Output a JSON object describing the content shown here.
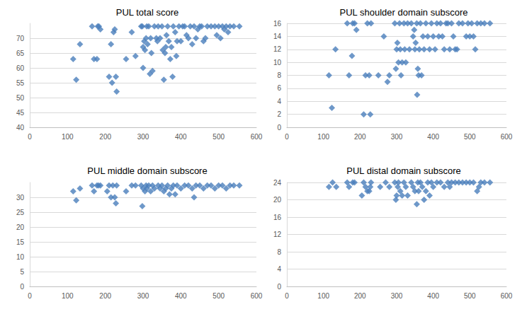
{
  "chart_data": [
    {
      "type": "scatter",
      "title": "PUL total score",
      "color": "#4a7ebb",
      "marker": "diamond",
      "grid": true,
      "xlim": [
        0,
        600
      ],
      "xticks": [
        0,
        100,
        200,
        300,
        400,
        500,
        600
      ],
      "ylim": [
        40,
        75
      ],
      "yticks": [
        40,
        45,
        50,
        55,
        60,
        65,
        70
      ],
      "x": [
        115,
        123,
        133,
        165,
        170,
        178,
        180,
        183,
        187,
        210,
        215,
        218,
        222,
        225,
        228,
        230,
        255,
        270,
        280,
        295,
        298,
        300,
        300,
        303,
        305,
        308,
        310,
        312,
        315,
        318,
        320,
        322,
        325,
        330,
        335,
        338,
        340,
        345,
        350,
        352,
        355,
        358,
        360,
        362,
        365,
        368,
        372,
        375,
        378,
        380,
        385,
        388,
        390,
        395,
        400,
        405,
        410,
        415,
        420,
        425,
        430,
        435,
        440,
        445,
        450,
        455,
        460,
        465,
        470,
        480,
        490,
        495,
        500,
        505,
        510,
        515,
        520,
        525,
        530,
        540,
        555
      ],
      "values": [
        63,
        56,
        68,
        74,
        63,
        63,
        74,
        74,
        73,
        57,
        68,
        55,
        72,
        73,
        57,
        52,
        63,
        72,
        64,
        74,
        74,
        60,
        67,
        69,
        66,
        70,
        74,
        68,
        74,
        58,
        70,
        65,
        59,
        74,
        70,
        69,
        74,
        70,
        74,
        66,
        56,
        65,
        67,
        71,
        74,
        69,
        63,
        67,
        57,
        74,
        72,
        64,
        69,
        74,
        69,
        74,
        74,
        71,
        70,
        74,
        68,
        74,
        70,
        73,
        74,
        74,
        69,
        70,
        74,
        74,
        74,
        71,
        74,
        70,
        74,
        73,
        74,
        72,
        74,
        74,
        74
      ]
    },
    {
      "type": "scatter",
      "title": "PUL shoulder domain subscore",
      "color": "#4a7ebb",
      "marker": "diamond",
      "grid": true,
      "xlim": [
        0,
        600
      ],
      "xticks": [
        0,
        100,
        200,
        300,
        400,
        500,
        600
      ],
      "ylim": [
        0,
        16
      ],
      "yticks": [
        0,
        2,
        4,
        6,
        8,
        10,
        12,
        14,
        16
      ],
      "x": [
        115,
        123,
        133,
        165,
        170,
        178,
        180,
        185,
        190,
        210,
        215,
        220,
        225,
        228,
        230,
        250,
        265,
        275,
        280,
        295,
        298,
        300,
        302,
        305,
        308,
        310,
        312,
        315,
        320,
        322,
        325,
        330,
        335,
        340,
        345,
        348,
        350,
        352,
        355,
        356,
        358,
        360,
        362,
        365,
        368,
        372,
        375,
        380,
        385,
        390,
        395,
        400,
        405,
        410,
        415,
        420,
        425,
        430,
        435,
        440,
        445,
        450,
        455,
        460,
        465,
        470,
        480,
        490,
        495,
        500,
        505,
        510,
        515,
        520,
        530,
        540,
        555
      ],
      "values": [
        8,
        3,
        12,
        16,
        8,
        11,
        16,
        16,
        15,
        2,
        8,
        16,
        8,
        2,
        16,
        8,
        14,
        7,
        8,
        16,
        9,
        12,
        13,
        10,
        16,
        12,
        8,
        10,
        16,
        12,
        10,
        16,
        12,
        16,
        14,
        15,
        12,
        13,
        16,
        5,
        9,
        8,
        12,
        16,
        8,
        14,
        12,
        16,
        14,
        12,
        16,
        14,
        12,
        16,
        14,
        16,
        14,
        12,
        16,
        16,
        12,
        16,
        14,
        12,
        12,
        16,
        16,
        14,
        16,
        14,
        16,
        14,
        12,
        16,
        16,
        16,
        16
      ]
    },
    {
      "type": "scatter",
      "title": "PUL middle domain subscore",
      "color": "#4a7ebb",
      "marker": "diamond",
      "grid": true,
      "xlim": [
        0,
        600
      ],
      "xticks": [
        0,
        100,
        200,
        300,
        400,
        500,
        600
      ],
      "ylim": [
        0,
        35
      ],
      "yticks": [
        0,
        5,
        10,
        15,
        20,
        25,
        30
      ],
      "x": [
        115,
        123,
        133,
        165,
        170,
        178,
        182,
        187,
        205,
        210,
        215,
        220,
        225,
        228,
        230,
        255,
        270,
        280,
        295,
        298,
        300,
        305,
        308,
        310,
        315,
        320,
        325,
        330,
        340,
        345,
        350,
        355,
        360,
        365,
        370,
        375,
        380,
        385,
        390,
        400,
        410,
        420,
        430,
        435,
        440,
        450,
        460,
        470,
        480,
        490,
        500,
        510,
        520,
        530,
        540,
        555
      ],
      "values": [
        32,
        29,
        33,
        34,
        32,
        34,
        34,
        34,
        32,
        34,
        30,
        34,
        30,
        28,
        34,
        32,
        34,
        34,
        34,
        27,
        33,
        32,
        34,
        33,
        34,
        32,
        34,
        33,
        34,
        33,
        34,
        32,
        33,
        34,
        31,
        33,
        34,
        31,
        34,
        33,
        34,
        34,
        33,
        30,
        34,
        34,
        33,
        34,
        34,
        33,
        34,
        34,
        33,
        34,
        34,
        34
      ]
    },
    {
      "type": "scatter",
      "title": "PUL distal domain subscore",
      "color": "#4a7ebb",
      "marker": "diamond",
      "grid": true,
      "xlim": [
        0,
        600
      ],
      "xticks": [
        0,
        100,
        200,
        300,
        400,
        500,
        600
      ],
      "ylim": [
        0,
        24
      ],
      "yticks": [
        0,
        4,
        8,
        12,
        16,
        20,
        24
      ],
      "x": [
        115,
        125,
        135,
        165,
        170,
        180,
        185,
        205,
        210,
        215,
        220,
        225,
        228,
        230,
        255,
        270,
        280,
        295,
        298,
        300,
        303,
        305,
        310,
        315,
        320,
        325,
        330,
        340,
        345,
        350,
        355,
        358,
        360,
        365,
        370,
        375,
        380,
        385,
        390,
        395,
        400,
        410,
        420,
        430,
        440,
        445,
        450,
        460,
        470,
        480,
        490,
        500,
        510,
        520,
        525,
        530,
        540,
        555
      ],
      "values": [
        23,
        24,
        23,
        24,
        23,
        24,
        24,
        21,
        24,
        23,
        22,
        22,
        23,
        24,
        23,
        24,
        23,
        24,
        20,
        21,
        23,
        24,
        22,
        21,
        24,
        23,
        21,
        24,
        23,
        22,
        19,
        24,
        22,
        24,
        23,
        20,
        22,
        24,
        21,
        24,
        23,
        24,
        24,
        23,
        24,
        23,
        24,
        24,
        24,
        24,
        24,
        24,
        24,
        22,
        23,
        24,
        24,
        24
      ]
    }
  ]
}
